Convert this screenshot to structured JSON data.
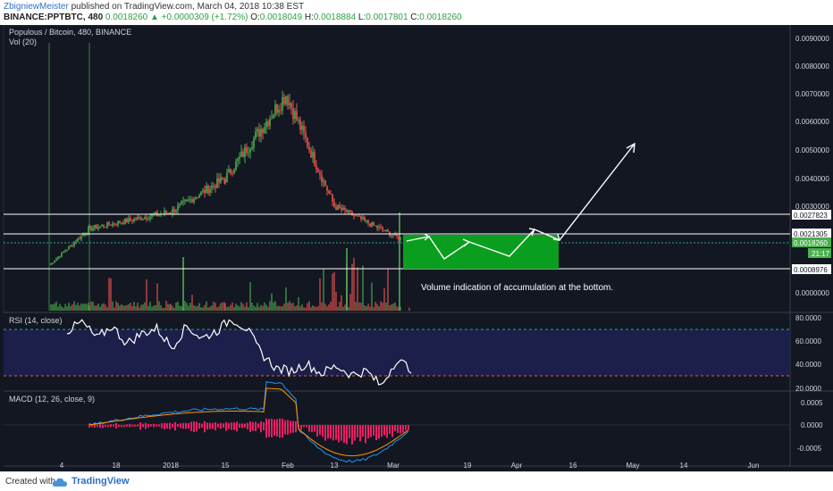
{
  "header": {
    "author": "ZbigniewMeister",
    "published": "published on TradingView.com, March 04, 2018 10:38 EST",
    "symbol": "BINANCE:PPTBTC, 480",
    "last": "0.0018260",
    "change": "+0.0000309 (+1.72%)",
    "o_label": "O:",
    "o": "0.0018049",
    "h_label": "H:",
    "h": "0.0018884",
    "l_label": "L:",
    "l": "0.0017801",
    "c_label": "C:",
    "c": "0.0018260"
  },
  "footer": {
    "created": "Created with",
    "brand": "TradingView"
  },
  "colors": {
    "background": "#131722",
    "up": "#4caf50",
    "down": "#ef5350",
    "rsi": "#ffffff",
    "rsi_band": "#1c1f4a",
    "green_box": "#0a9e1e",
    "macd": "#2196f3",
    "signal": "#ff9800",
    "hist": "#e91e63"
  },
  "chart_data": [
    {
      "type": "line",
      "title": "Populous / Bitcoin, 480, BINANCE",
      "subtitle": "Vol (20)",
      "ylim": [
        0,
        0.0095
      ],
      "x_ticks": [
        "4",
        "18",
        "2018",
        "15",
        "Feb",
        "13",
        "Mar",
        "19",
        "Apr",
        "16",
        "May",
        "14",
        "Jun"
      ],
      "y_ticks": [
        "0.0090000",
        "0.0080000",
        "0.0070000",
        "0.0060000",
        "0.0050000",
        "0.0040000",
        "0.0030000",
        "0.0000000"
      ],
      "series": [
        {
          "x": [
            "4",
            "18",
            "2018",
            "15",
            "Feb",
            "13",
            "Mar"
          ],
          "values": [
            0.0009,
            0.0022,
            0.0028,
            0.004,
            0.007,
            0.003,
            0.0018
          ]
        }
      ],
      "horizontal_levels": [
        {
          "label": "0.0027823",
          "value": 0.0027823
        },
        {
          "label": "0.0021305",
          "value": 0.0021305
        },
        {
          "label": "0.0018260",
          "value": 0.001826,
          "current": true
        },
        {
          "label": "0.0008976",
          "value": 0.0008976
        }
      ],
      "time_badge": "21:17",
      "annotations": [
        "Volume indication of accumulation at the bottom."
      ]
    },
    {
      "type": "line",
      "title": "RSI (14, close)",
      "ylim": [
        20,
        80
      ],
      "y_ticks": [
        "80.0000",
        "60.0000",
        "40.0000",
        "20.0000"
      ],
      "series": [
        {
          "values": [
            68,
            75,
            62,
            72,
            58,
            66,
            70,
            55,
            72,
            62,
            68,
            78,
            70,
            50,
            38,
            36,
            42,
            34,
            40,
            33,
            36,
            24,
            45,
            38
          ]
        }
      ]
    },
    {
      "type": "line",
      "title": "MACD (12, 26, close, 9)",
      "ylim": [
        -0.0008,
        0.0008
      ],
      "y_ticks": [
        "0.0005",
        "0.0000",
        "-0.0005"
      ]
    }
  ]
}
